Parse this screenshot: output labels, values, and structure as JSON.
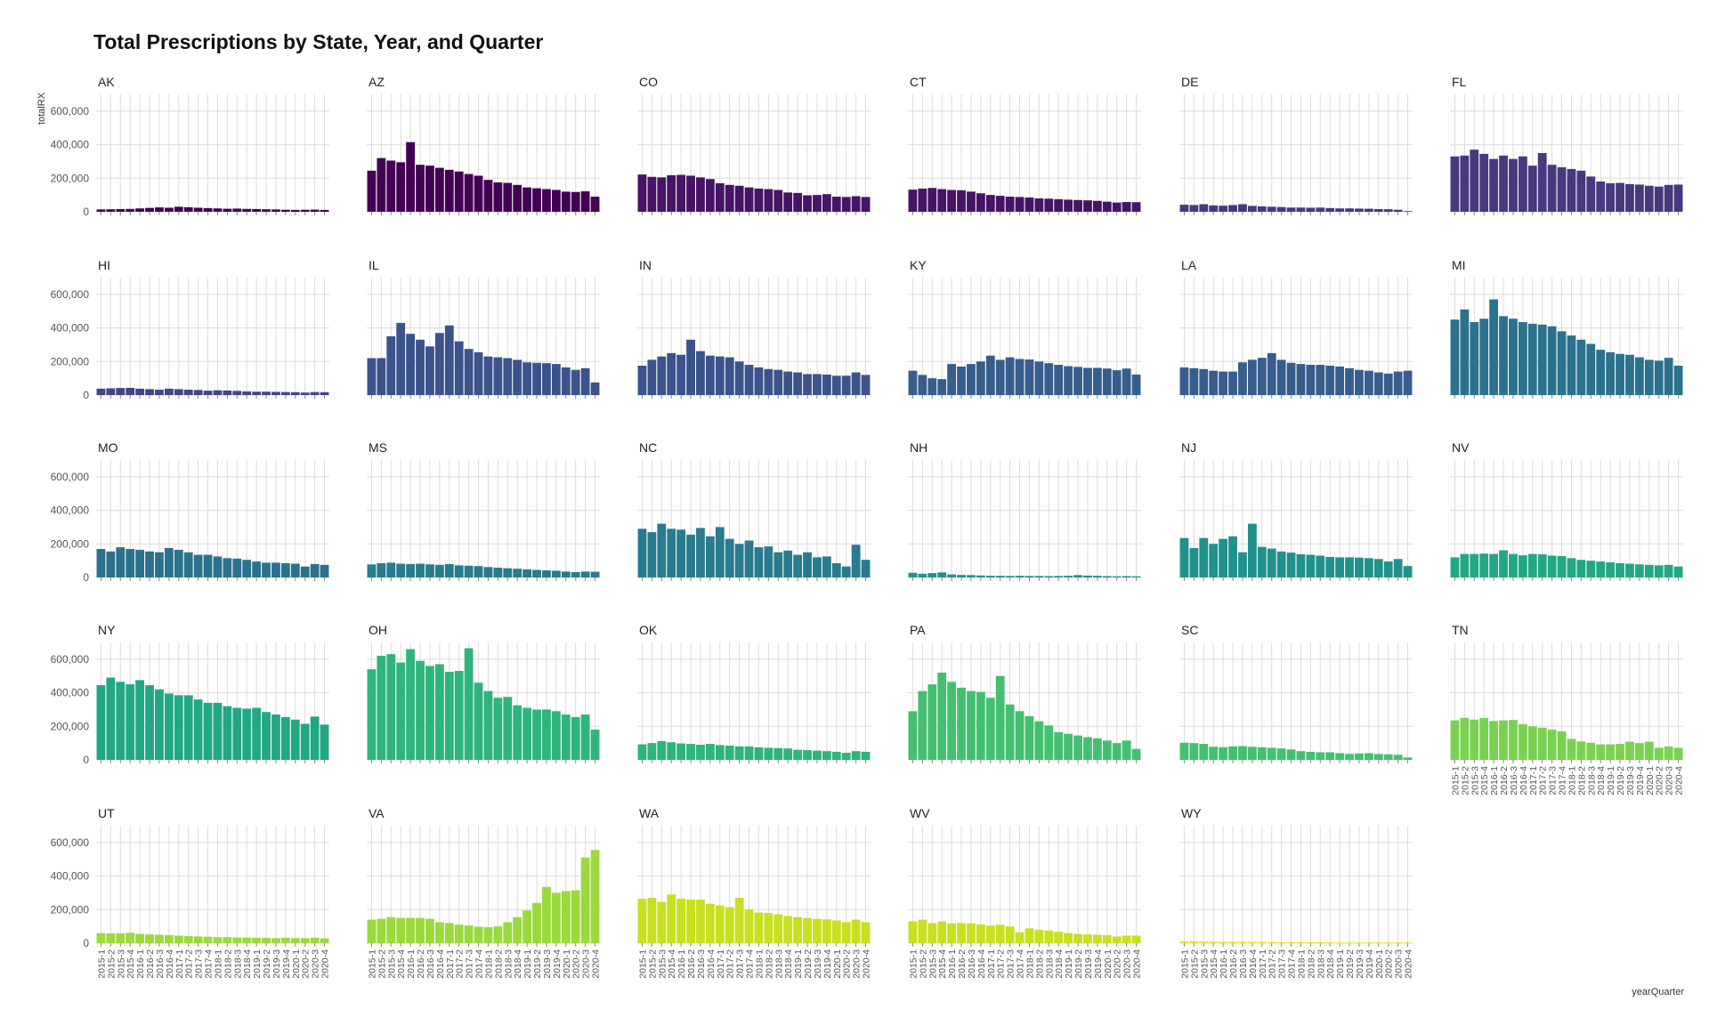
{
  "chart_data": {
    "type": "bar",
    "title": "Total Prescriptions by State, Year, and Quarter",
    "xlabel": "yearQuarter",
    "ylabel": "totalRX",
    "ylim": [
      0,
      700000
    ],
    "yticks": [
      0,
      200000,
      400000,
      600000
    ],
    "ytick_labels": [
      "0",
      "200,000",
      "400,000",
      "600,000"
    ],
    "grid": true,
    "categories": [
      "2015-1",
      "2015-2",
      "2015-3",
      "2015-4",
      "2016-1",
      "2016-2",
      "2016-3",
      "2016-4",
      "2017-1",
      "2017-2",
      "2017-3",
      "2017-4",
      "2018-1",
      "2018-2",
      "2018-3",
      "2018-4",
      "2019-1",
      "2019-2",
      "2019-3",
      "2019-4",
      "2020-1",
      "2020-2",
      "2020-3",
      "2020-4"
    ],
    "panels": [
      {
        "state": "AK",
        "color": "#440154",
        "values": [
          14000,
          15000,
          16000,
          17000,
          20000,
          23000,
          26000,
          24000,
          30000,
          27000,
          24000,
          22000,
          20000,
          18000,
          19000,
          17000,
          16000,
          15000,
          14000,
          12000,
          11000,
          12000,
          13000,
          11000
        ]
      },
      {
        "state": "AZ",
        "color": "#440154",
        "values": [
          245000,
          320000,
          305000,
          295000,
          415000,
          280000,
          275000,
          262000,
          250000,
          240000,
          225000,
          215000,
          190000,
          175000,
          172000,
          160000,
          145000,
          140000,
          135000,
          130000,
          120000,
          118000,
          122000,
          90000
        ]
      },
      {
        "state": "CO",
        "color": "#471365",
        "values": [
          222000,
          208000,
          205000,
          218000,
          220000,
          215000,
          205000,
          195000,
          170000,
          160000,
          155000,
          145000,
          138000,
          135000,
          130000,
          115000,
          112000,
          98000,
          100000,
          105000,
          90000,
          88000,
          93000,
          88000
        ]
      },
      {
        "state": "CT",
        "color": "#471365",
        "values": [
          132000,
          138000,
          142000,
          135000,
          130000,
          128000,
          120000,
          110000,
          100000,
          95000,
          90000,
          88000,
          85000,
          80000,
          78000,
          75000,
          72000,
          70000,
          68000,
          65000,
          60000,
          55000,
          58000,
          57000
        ]
      },
      {
        "state": "DE",
        "color": "#48387e",
        "values": [
          42000,
          40000,
          45000,
          38000,
          36000,
          40000,
          45000,
          35000,
          32000,
          30000,
          28000,
          25000,
          25000,
          24000,
          25000,
          22000,
          20000,
          20000,
          19000,
          18000,
          16000,
          15000,
          12000,
          4000
        ]
      },
      {
        "state": "FL",
        "color": "#48387e",
        "values": [
          330000,
          335000,
          370000,
          345000,
          315000,
          335000,
          315000,
          330000,
          275000,
          350000,
          280000,
          265000,
          255000,
          245000,
          210000,
          180000,
          170000,
          172000,
          165000,
          162000,
          155000,
          150000,
          160000,
          162000
        ]
      },
      {
        "state": "HI",
        "color": "#404688",
        "values": [
          38000,
          40000,
          42000,
          43000,
          38000,
          35000,
          32000,
          38000,
          35000,
          32000,
          30000,
          26000,
          28000,
          27000,
          25000,
          22000,
          20000,
          20000,
          19000,
          18000,
          17000,
          15000,
          18000,
          17000
        ]
      },
      {
        "state": "IL",
        "color": "#3b528b",
        "values": [
          220000,
          220000,
          350000,
          430000,
          365000,
          330000,
          290000,
          370000,
          415000,
          320000,
          275000,
          255000,
          230000,
          225000,
          220000,
          210000,
          195000,
          192000,
          190000,
          185000,
          165000,
          150000,
          160000,
          75000
        ]
      },
      {
        "state": "IN",
        "color": "#3b528b",
        "values": [
          175000,
          210000,
          230000,
          250000,
          240000,
          330000,
          262000,
          235000,
          230000,
          225000,
          200000,
          180000,
          165000,
          155000,
          150000,
          140000,
          135000,
          125000,
          125000,
          122000,
          115000,
          115000,
          135000,
          120000
        ]
      },
      {
        "state": "KY",
        "color": "#375d8d",
        "values": [
          145000,
          120000,
          100000,
          95000,
          185000,
          170000,
          185000,
          200000,
          235000,
          210000,
          225000,
          215000,
          212000,
          200000,
          190000,
          180000,
          172000,
          168000,
          162000,
          162000,
          158000,
          148000,
          158000,
          122000
        ]
      },
      {
        "state": "LA",
        "color": "#375d8d",
        "values": [
          165000,
          160000,
          155000,
          145000,
          140000,
          140000,
          195000,
          210000,
          222000,
          250000,
          210000,
          192000,
          185000,
          180000,
          180000,
          175000,
          170000,
          160000,
          150000,
          145000,
          135000,
          128000,
          140000,
          145000
        ]
      },
      {
        "state": "MI",
        "color": "#2c728e",
        "values": [
          450000,
          510000,
          435000,
          455000,
          570000,
          470000,
          455000,
          435000,
          425000,
          420000,
          410000,
          380000,
          355000,
          330000,
          305000,
          270000,
          255000,
          245000,
          240000,
          225000,
          210000,
          205000,
          222000,
          175000
        ]
      },
      {
        "state": "MO",
        "color": "#2c728e",
        "values": [
          170000,
          155000,
          180000,
          170000,
          165000,
          155000,
          150000,
          175000,
          165000,
          150000,
          135000,
          135000,
          125000,
          115000,
          112000,
          105000,
          95000,
          88000,
          88000,
          85000,
          82000,
          65000,
          80000,
          75000
        ]
      },
      {
        "state": "MS",
        "color": "#297b8e",
        "values": [
          78000,
          85000,
          88000,
          82000,
          80000,
          82000,
          78000,
          75000,
          80000,
          72000,
          70000,
          68000,
          62000,
          58000,
          55000,
          52000,
          48000,
          45000,
          42000,
          40000,
          35000,
          32000,
          35000,
          34000
        ]
      },
      {
        "state": "NC",
        "color": "#297b8e",
        "values": [
          290000,
          270000,
          320000,
          290000,
          285000,
          255000,
          295000,
          245000,
          300000,
          230000,
          200000,
          220000,
          180000,
          185000,
          150000,
          160000,
          135000,
          150000,
          120000,
          125000,
          85000,
          65000,
          195000,
          105000
        ]
      },
      {
        "state": "NH",
        "color": "#21918c",
        "values": [
          28000,
          22000,
          26000,
          30000,
          18000,
          15000,
          14000,
          12000,
          10000,
          10000,
          9000,
          10000,
          9000,
          9000,
          8000,
          9000,
          10000,
          14000,
          11000,
          10000,
          8000,
          7000,
          8000,
          7000
        ]
      },
      {
        "state": "NJ",
        "color": "#21918c",
        "values": [
          235000,
          175000,
          235000,
          200000,
          230000,
          245000,
          150000,
          320000,
          182000,
          172000,
          155000,
          148000,
          138000,
          135000,
          130000,
          122000,
          120000,
          120000,
          118000,
          115000,
          110000,
          95000,
          110000,
          68000
        ]
      },
      {
        "state": "NV",
        "color": "#22a785",
        "values": [
          120000,
          140000,
          140000,
          142000,
          140000,
          162000,
          140000,
          132000,
          140000,
          138000,
          130000,
          128000,
          115000,
          105000,
          100000,
          95000,
          90000,
          85000,
          82000,
          78000,
          75000,
          72000,
          75000,
          65000
        ]
      },
      {
        "state": "NY",
        "color": "#22a785",
        "values": [
          445000,
          490000,
          465000,
          450000,
          475000,
          445000,
          420000,
          395000,
          385000,
          385000,
          360000,
          340000,
          340000,
          320000,
          310000,
          305000,
          310000,
          285000,
          270000,
          255000,
          240000,
          215000,
          258000,
          210000
        ]
      },
      {
        "state": "OH",
        "color": "#2fb47c",
        "values": [
          540000,
          620000,
          630000,
          580000,
          660000,
          590000,
          560000,
          570000,
          525000,
          530000,
          665000,
          460000,
          410000,
          370000,
          375000,
          325000,
          310000,
          300000,
          300000,
          290000,
          270000,
          255000,
          270000,
          180000
        ]
      },
      {
        "state": "OK",
        "color": "#2fb47c",
        "values": [
          92000,
          100000,
          112000,
          105000,
          98000,
          95000,
          90000,
          95000,
          88000,
          85000,
          80000,
          80000,
          75000,
          72000,
          70000,
          68000,
          60000,
          58000,
          55000,
          52000,
          48000,
          42000,
          52000,
          48000
        ]
      },
      {
        "state": "PA",
        "color": "#44bf70",
        "values": [
          290000,
          410000,
          450000,
          520000,
          465000,
          430000,
          410000,
          405000,
          370000,
          500000,
          330000,
          290000,
          260000,
          230000,
          205000,
          165000,
          155000,
          145000,
          135000,
          128000,
          115000,
          100000,
          115000,
          65000
        ]
      },
      {
        "state": "SC",
        "color": "#44bf70",
        "values": [
          102000,
          100000,
          95000,
          78000,
          75000,
          80000,
          82000,
          78000,
          75000,
          72000,
          68000,
          62000,
          52000,
          48000,
          45000,
          45000,
          40000,
          36000,
          38000,
          40000,
          35000,
          33000,
          30000,
          14000
        ]
      },
      {
        "state": "TN",
        "color": "#7ad151",
        "values": [
          235000,
          250000,
          240000,
          250000,
          232000,
          235000,
          238000,
          212000,
          200000,
          192000,
          180000,
          170000,
          125000,
          110000,
          102000,
          92000,
          92000,
          95000,
          108000,
          100000,
          108000,
          72000,
          80000,
          72000
        ]
      },
      {
        "state": "UT",
        "color": "#9bd93c",
        "values": [
          60000,
          58000,
          58000,
          62000,
          55000,
          52000,
          50000,
          48000,
          45000,
          42000,
          40000,
          38000,
          36000,
          36000,
          34000,
          33000,
          32000,
          32000,
          30000,
          32000,
          30000,
          30000,
          32000,
          28000
        ]
      },
      {
        "state": "VA",
        "color": "#9bd93c",
        "values": [
          140000,
          145000,
          155000,
          150000,
          150000,
          150000,
          145000,
          125000,
          120000,
          110000,
          105000,
          98000,
          95000,
          100000,
          125000,
          155000,
          195000,
          240000,
          335000,
          300000,
          310000,
          315000,
          510000,
          555000
        ]
      },
      {
        "state": "WA",
        "color": "#c8e020",
        "values": [
          265000,
          270000,
          245000,
          290000,
          265000,
          260000,
          260000,
          235000,
          225000,
          215000,
          270000,
          200000,
          182000,
          180000,
          172000,
          162000,
          155000,
          150000,
          145000,
          142000,
          135000,
          125000,
          140000,
          125000
        ]
      },
      {
        "state": "WV",
        "color": "#c8e020",
        "values": [
          130000,
          140000,
          120000,
          130000,
          118000,
          120000,
          118000,
          112000,
          105000,
          110000,
          100000,
          65000,
          88000,
          80000,
          75000,
          68000,
          60000,
          55000,
          52000,
          50000,
          48000,
          40000,
          45000,
          45000
        ]
      },
      {
        "state": "WY",
        "color": "#e5e419",
        "values": [
          10000,
          10000,
          9000,
          9000,
          8000,
          8000,
          8000,
          8000,
          7000,
          7000,
          6000,
          6000,
          6000,
          6000,
          5000,
          5000,
          4000,
          4000,
          4000,
          4000,
          4000,
          4000,
          4000,
          4000
        ]
      }
    ]
  }
}
